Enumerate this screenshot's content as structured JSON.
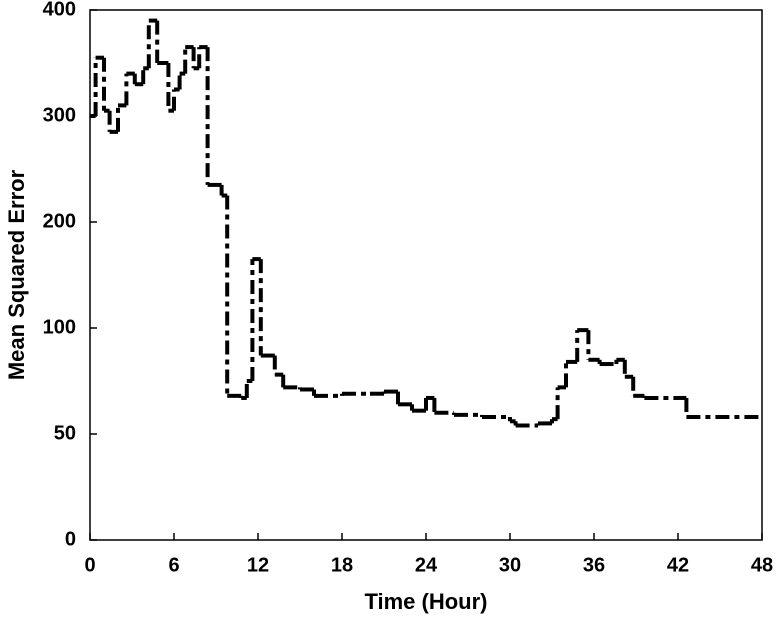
{
  "chart_data": {
    "type": "step",
    "xlabel": "Time (Hour)",
    "ylabel": "Mean Squared Error",
    "xlim": [
      0,
      48
    ],
    "xticks": [
      0,
      6,
      12,
      18,
      24,
      30,
      36,
      42,
      48
    ],
    "ylim": [
      0,
      400
    ],
    "yticks": [
      0,
      50,
      100,
      200,
      300,
      400
    ],
    "yscale": "piecewise",
    "grid": false,
    "series": [
      {
        "name": "MSE",
        "color": "#000000",
        "x": [
          0,
          0.4,
          1.0,
          1.4,
          2.0,
          2.6,
          3.2,
          3.8,
          4.2,
          4.8,
          5.6,
          6.0,
          6.4,
          6.8,
          7.4,
          7.8,
          8.4,
          9.4,
          9.8,
          10.8,
          11.2,
          11.6,
          12.2,
          13.2,
          13.8,
          15.0,
          16.0,
          18,
          20,
          21,
          22,
          23,
          24,
          24.6,
          26,
          28,
          30,
          30.4,
          32,
          33,
          33.4,
          34,
          34.8,
          35.6,
          36.4,
          37.6,
          38.2,
          38.8,
          39.6,
          42,
          42.6
        ],
        "values": [
          300,
          355,
          305,
          285,
          310,
          340,
          330,
          345,
          390,
          350,
          305,
          325,
          340,
          365,
          345,
          365,
          235,
          225,
          68,
          67,
          75,
          165,
          87,
          78,
          72,
          71,
          68,
          69,
          69,
          70,
          64,
          61,
          67,
          60,
          59,
          58,
          56,
          54,
          55,
          57,
          72,
          84,
          99,
          85,
          83,
          85,
          77,
          68,
          67,
          67,
          58
        ]
      }
    ]
  }
}
